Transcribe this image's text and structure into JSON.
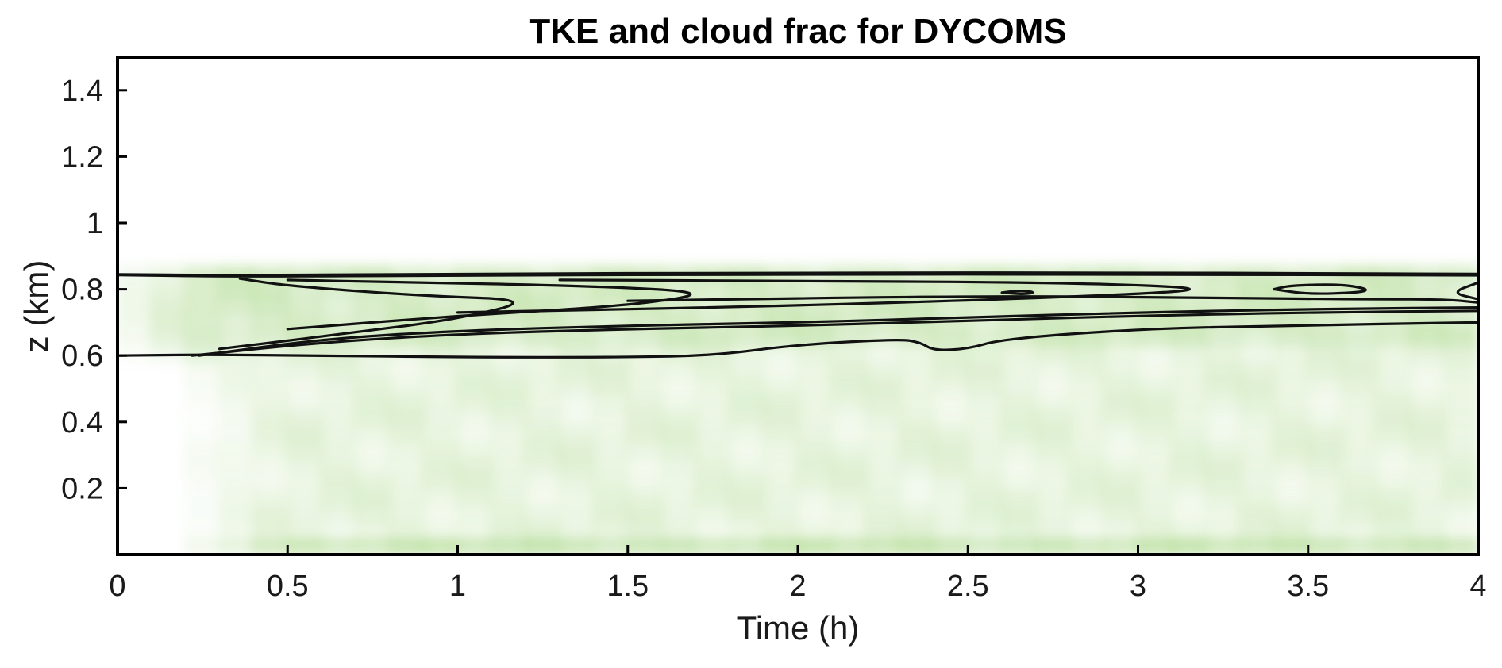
{
  "chart_data": {
    "type": "heatmap",
    "title": "TKE and cloud frac for DYCOMS",
    "xlabel": "Time (h)",
    "ylabel": "z (km)",
    "xlim": [
      0,
      4
    ],
    "ylim": [
      0,
      1.5
    ],
    "xticks": [
      0,
      0.5,
      1,
      1.5,
      2,
      2.5,
      3,
      3.5,
      4
    ],
    "xtick_labels": [
      "0",
      "0.5",
      "1",
      "1.5",
      "2",
      "2.5",
      "3",
      "3.5",
      "4"
    ],
    "yticks": [
      0.2,
      0.4,
      0.6,
      0.8,
      1,
      1.2,
      1.4
    ],
    "ytick_labels": [
      "0.2",
      "0.4",
      "0.6",
      "0.8",
      "1",
      "1.2",
      "1.4"
    ],
    "grid": false,
    "background_field": {
      "name": "TKE",
      "colormap": [
        "#ffffff",
        "#7cc24a"
      ],
      "boundary_layer_top_km": 0.87,
      "spinup_time_h": 0.3
    },
    "contour_field": {
      "name": "cloud frac",
      "color": "#111111",
      "contours": [
        {
          "level": 1,
          "points": [
            [
              0,
              0.845
            ],
            [
              0.3,
              0.842
            ],
            [
              1.0,
              0.846
            ],
            [
              2.0,
              0.85
            ],
            [
              3.0,
              0.85
            ],
            [
              3.5,
              0.848
            ],
            [
              4.0,
              0.846
            ]
          ]
        },
        {
          "level": 2,
          "points": [
            [
              0,
              0.843
            ],
            [
              0.35,
              0.838
            ],
            [
              1.0,
              0.842
            ],
            [
              2.0,
              0.845
            ],
            [
              3.0,
              0.845
            ],
            [
              4.0,
              0.842
            ]
          ]
        },
        {
          "level": 3,
          "points": [
            [
              0,
              0.6
            ],
            [
              0.25,
              0.603
            ],
            [
              0.6,
              0.6
            ],
            [
              1.0,
              0.595
            ],
            [
              1.5,
              0.595
            ],
            [
              1.75,
              0.6
            ],
            [
              2.0,
              0.633
            ],
            [
              2.3,
              0.65
            ],
            [
              2.36,
              0.64
            ],
            [
              2.4,
              0.615
            ],
            [
              2.5,
              0.62
            ],
            [
              2.6,
              0.65
            ],
            [
              3.0,
              0.68
            ],
            [
              3.4,
              0.69
            ],
            [
              4.0,
              0.7
            ]
          ]
        },
        {
          "level": 4,
          "points": [
            [
              0.22,
              0.6
            ],
            [
              0.6,
              0.64
            ],
            [
              1.0,
              0.665
            ],
            [
              1.5,
              0.68
            ],
            [
              2.0,
              0.69
            ],
            [
              2.5,
              0.705
            ],
            [
              3.0,
              0.72
            ],
            [
              3.5,
              0.73
            ],
            [
              4.0,
              0.735
            ]
          ]
        },
        {
          "level": 5,
          "points": [
            [
              0.24,
              0.6
            ],
            [
              0.6,
              0.65
            ],
            [
              1.0,
              0.675
            ],
            [
              1.5,
              0.69
            ],
            [
              2.0,
              0.7
            ],
            [
              2.5,
              0.715
            ],
            [
              3.0,
              0.73
            ],
            [
              3.5,
              0.74
            ],
            [
              4.0,
              0.745
            ]
          ]
        },
        {
          "level": 6,
          "points": [
            [
              0.3,
              0.62
            ],
            [
              0.7,
              0.67
            ],
            [
              1.0,
              0.71
            ],
            [
              1.23,
              0.768
            ],
            [
              0.9,
              0.78
            ],
            [
              0.5,
              0.81
            ],
            [
              0.36,
              0.832
            ]
          ]
        },
        {
          "level": 7,
          "points": [
            [
              0.5,
              0.68
            ],
            [
              1.0,
              0.72
            ],
            [
              1.5,
              0.75
            ],
            [
              1.76,
              0.79
            ],
            [
              1.4,
              0.81
            ],
            [
              0.8,
              0.822
            ],
            [
              0.5,
              0.828
            ]
          ]
        },
        {
          "level": 8,
          "points": [
            [
              1.0,
              0.73
            ],
            [
              2.0,
              0.75
            ],
            [
              2.9,
              0.78
            ],
            [
              3.25,
              0.802
            ],
            [
              2.8,
              0.82
            ],
            [
              2.0,
              0.825
            ],
            [
              1.3,
              0.828
            ]
          ]
        },
        {
          "level": 9,
          "points": [
            [
              2.6,
              0.79
            ],
            [
              2.66,
              0.785
            ],
            [
              2.7,
              0.79
            ],
            [
              2.66,
              0.797
            ],
            [
              2.6,
              0.79
            ]
          ]
        },
        {
          "level": 10,
          "points": [
            [
              3.4,
              0.8
            ],
            [
              3.5,
              0.785
            ],
            [
              3.65,
              0.79
            ],
            [
              3.68,
              0.8
            ],
            [
              3.6,
              0.815
            ],
            [
              3.45,
              0.812
            ],
            [
              3.4,
              0.8
            ]
          ]
        },
        {
          "level": 11,
          "points": [
            [
              4.0,
              0.77
            ],
            [
              3.92,
              0.79
            ],
            [
              4.0,
              0.82
            ]
          ]
        },
        {
          "level": 12,
          "points": [
            [
              1.5,
              0.765
            ],
            [
              2.5,
              0.78
            ],
            [
              3.2,
              0.775
            ],
            [
              3.6,
              0.77
            ],
            [
              3.9,
              0.77
            ],
            [
              4.0,
              0.76
            ]
          ]
        }
      ]
    }
  }
}
